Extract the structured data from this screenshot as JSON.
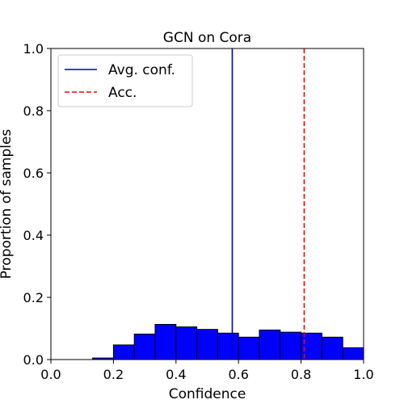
{
  "chart_data": {
    "type": "bar",
    "title": "GCN on Cora",
    "xlabel": "Confidence",
    "ylabel": "Proportion of samples",
    "xlim": [
      0.0,
      1.0
    ],
    "ylim": [
      0.0,
      1.0
    ],
    "xticks": [
      "0.0",
      "0.2",
      "0.4",
      "0.6",
      "0.8",
      "1.0"
    ],
    "yticks": [
      "0.0",
      "0.2",
      "0.4",
      "0.6",
      "0.8",
      "1.0"
    ],
    "bin_width": 0.0667,
    "bins": [
      {
        "start": 0.1333,
        "value": 0.005
      },
      {
        "start": 0.2,
        "value": 0.047
      },
      {
        "start": 0.2667,
        "value": 0.082
      },
      {
        "start": 0.3333,
        "value": 0.113
      },
      {
        "start": 0.4,
        "value": 0.105
      },
      {
        "start": 0.4667,
        "value": 0.097
      },
      {
        "start": 0.5333,
        "value": 0.085
      },
      {
        "start": 0.6,
        "value": 0.072
      },
      {
        "start": 0.6667,
        "value": 0.095
      },
      {
        "start": 0.7333,
        "value": 0.088
      },
      {
        "start": 0.8,
        "value": 0.085
      },
      {
        "start": 0.8667,
        "value": 0.072
      },
      {
        "start": 0.9333,
        "value": 0.038
      }
    ],
    "bar_color": "#0000ff",
    "bar_edge_color": "#000000",
    "avg_conf": 0.58,
    "acc": 0.81,
    "avg_conf_color": "#0000cc",
    "acc_color": "#ff0000",
    "legend": {
      "placement": "top-left",
      "entries": [
        {
          "label": "Avg. conf.",
          "style": "solid",
          "color": "#0000cc"
        },
        {
          "label": "Acc.",
          "style": "dashed",
          "color": "#ff0000"
        }
      ]
    },
    "grid": false
  }
}
